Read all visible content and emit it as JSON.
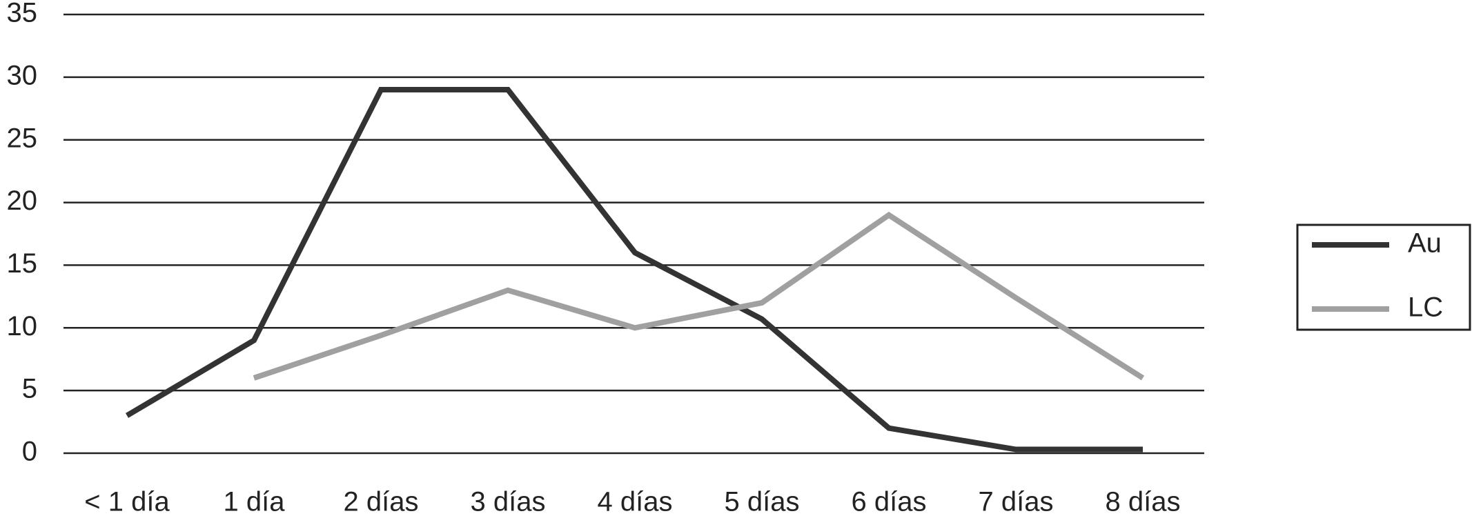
{
  "chart_data": {
    "type": "line",
    "categories": [
      "< 1 día",
      "1 día",
      "2 días",
      "3 días",
      "4 días",
      "5 días",
      "6 días",
      "7 días",
      "8 días"
    ],
    "series": [
      {
        "name": "Au",
        "color": "#333333",
        "values": [
          3,
          9,
          29,
          29,
          16,
          10.7,
          2,
          0.3,
          0.3
        ]
      },
      {
        "name": "LC",
        "color": "#a0a0a0",
        "values": [
          null,
          6,
          9.4,
          13,
          10,
          12,
          19,
          12.4,
          6
        ]
      }
    ],
    "ylim": [
      0,
      35
    ],
    "yticks": [
      0,
      5,
      10,
      15,
      20,
      25,
      30,
      35
    ],
    "grid": true,
    "legend": "right"
  }
}
